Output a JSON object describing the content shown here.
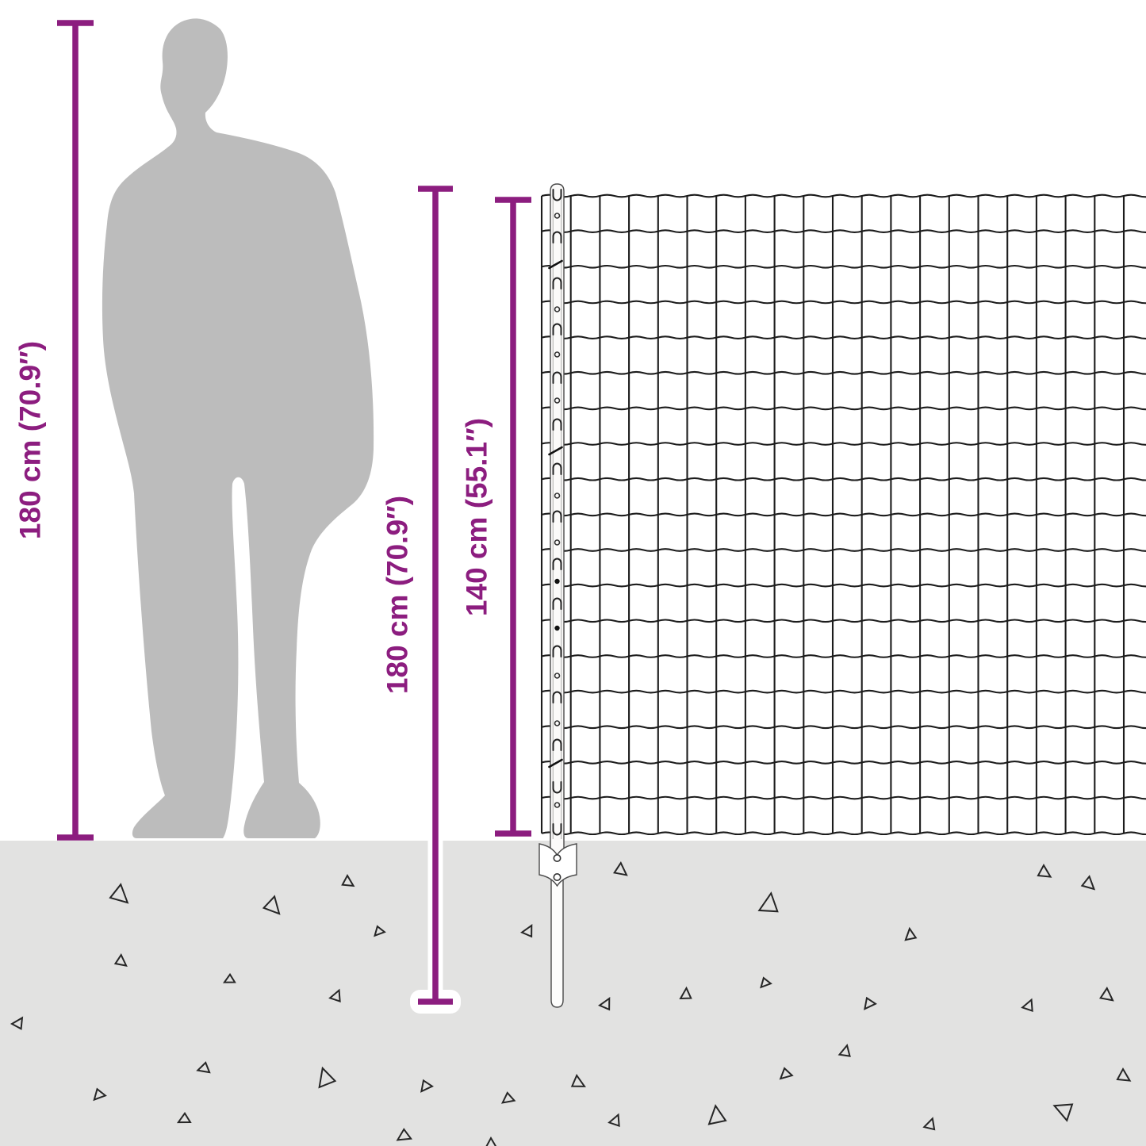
{
  "title": "Fence dimension diagram",
  "labels": {
    "person_height": "180 cm (70.9″)",
    "post_height": "180 cm (70.9″)",
    "fence_height": "140 cm (55.1″)"
  },
  "colors": {
    "measurement_purple": "#8c1d7f",
    "silhouette_gray": "#bcbcbc",
    "ground_gray": "#e2e2e1",
    "wire_black": "#1c1c1c"
  },
  "objects": {
    "person": "human-silhouette-for-scale",
    "fence": "wire-mesh-fence",
    "post": "fence-post-with-anchor-bracket-and-ground-spike"
  }
}
